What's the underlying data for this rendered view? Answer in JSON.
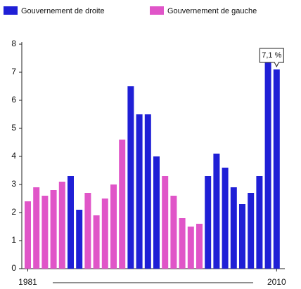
{
  "chart_data": {
    "type": "bar",
    "categories": [
      "1981",
      null,
      null,
      null,
      null,
      null,
      null,
      null,
      null,
      null,
      null,
      null,
      null,
      null,
      null,
      null,
      null,
      null,
      null,
      null,
      null,
      null,
      null,
      null,
      null,
      null,
      null,
      null,
      null,
      "2010"
    ],
    "series": [
      {
        "name": "Gouvernement de droite",
        "color": "#1f1fd6",
        "values": [
          null,
          null,
          null,
          null,
          null,
          3.3,
          2.1,
          null,
          null,
          null,
          null,
          null,
          6.5,
          5.5,
          5.5,
          4.0,
          null,
          null,
          null,
          null,
          null,
          3.3,
          4.1,
          3.6,
          2.9,
          2.3,
          2.7,
          3.3,
          7.5,
          7.1
        ],
        "value_labels": [
          null,
          null,
          null,
          null,
          null,
          null,
          null,
          null,
          null,
          null,
          null,
          null,
          null,
          null,
          null,
          null,
          null,
          null,
          null,
          null,
          null,
          null,
          null,
          null,
          null,
          null,
          null,
          null,
          null,
          "7,1 %"
        ]
      },
      {
        "name": "Gouvernement de gauche",
        "color": "#e055c8",
        "values": [
          2.4,
          2.9,
          2.6,
          2.8,
          3.1,
          null,
          null,
          2.7,
          1.9,
          2.5,
          3.0,
          4.6,
          null,
          null,
          null,
          null,
          3.3,
          2.6,
          1.8,
          1.5,
          1.6,
          null,
          null,
          null,
          null,
          null,
          null,
          null,
          null,
          null
        ]
      }
    ],
    "ylim": [
      0,
      8
    ],
    "yticks": [
      0,
      1,
      2,
      3,
      4,
      5,
      6,
      7,
      8
    ]
  }
}
